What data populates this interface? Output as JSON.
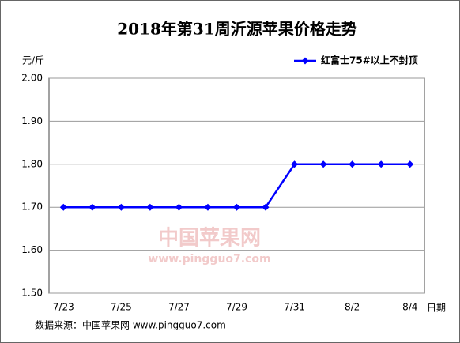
{
  "chart_data": {
    "type": "line",
    "title": "2018年第31周沂源苹果价格走势",
    "y_label": "元/斤",
    "x_label": "日期",
    "source": "数据来源：中国苹果网 www.pingguo7.com",
    "watermark": [
      "中国苹果网",
      "www.pingguo7.com"
    ],
    "categories": [
      "7/23",
      null,
      "7/25",
      null,
      "7/27",
      null,
      "7/29",
      null,
      "7/31",
      null,
      "8/2",
      null,
      "8/4"
    ],
    "series": [
      {
        "name": "红富士75#以上不封顶",
        "color": "#0000ff",
        "values": [
          1.7,
          1.7,
          1.7,
          1.7,
          1.7,
          1.7,
          1.7,
          1.7,
          1.8,
          1.8,
          1.8,
          1.8,
          1.8
        ]
      }
    ],
    "ylim": [
      1.5,
      2.0
    ],
    "yticks": [
      {
        "value": 1.5,
        "label": "1.50"
      },
      {
        "value": 1.6,
        "label": "1.60"
      },
      {
        "value": 1.7,
        "label": "1.70"
      },
      {
        "value": 1.8,
        "label": "1.80"
      },
      {
        "value": 1.9,
        "label": "1.90"
      },
      {
        "value": 2.0,
        "label": "2.00"
      }
    ],
    "grid": true,
    "legend": "top-right"
  }
}
